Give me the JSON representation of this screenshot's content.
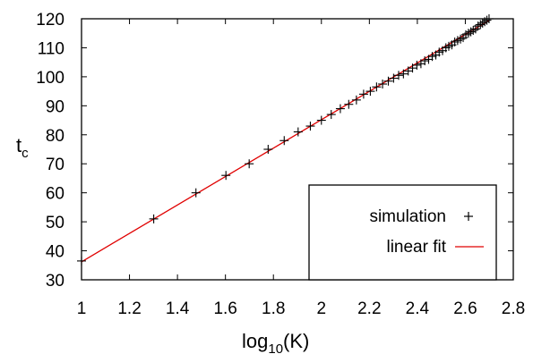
{
  "chart_data": {
    "type": "scatter",
    "xlabel": "log",
    "xlabel_sub": "10",
    "xlabel_tail": "(K)",
    "ylabel": "t",
    "ylabel_sub": "c",
    "xlim": [
      1.0,
      2.8
    ],
    "ylim": [
      30,
      120
    ],
    "xticks": [
      "1",
      "1.2",
      "1.4",
      "1.6",
      "1.8",
      "2",
      "2.2",
      "2.4",
      "2.6",
      "2.8"
    ],
    "yticks": [
      "30",
      "40",
      "50",
      "60",
      "70",
      "80",
      "90",
      "100",
      "110",
      "120"
    ],
    "legend_position": "bottom-right",
    "series": [
      {
        "name": "simulation",
        "marker": "+",
        "color": "#000000",
        "x": [
          1.0,
          1.301,
          1.477,
          1.602,
          1.699,
          1.778,
          1.845,
          1.903,
          1.954,
          2.0,
          2.041,
          2.079,
          2.114,
          2.146,
          2.176,
          2.204,
          2.23,
          2.255,
          2.279,
          2.301,
          2.322,
          2.342,
          2.362,
          2.38,
          2.398,
          2.415,
          2.431,
          2.447,
          2.462,
          2.477,
          2.491,
          2.505,
          2.519,
          2.531,
          2.544,
          2.556,
          2.568,
          2.58,
          2.591,
          2.602,
          2.613,
          2.623,
          2.633,
          2.643,
          2.653,
          2.663,
          2.672,
          2.681,
          2.69,
          2.699
        ],
        "y": [
          36.5,
          51,
          60,
          66,
          70,
          75,
          78,
          81,
          83,
          85,
          87,
          89,
          90.5,
          92,
          94,
          95,
          96.5,
          97.5,
          98.5,
          99.5,
          100.5,
          101,
          102,
          103,
          104,
          104.5,
          105.5,
          106,
          107,
          107.5,
          108.5,
          109,
          110,
          110.5,
          111,
          112,
          112.5,
          113,
          113.5,
          114.5,
          115,
          115.5,
          116,
          116.5,
          117.5,
          118,
          118.5,
          119,
          119.5,
          120
        ]
      },
      {
        "name": "linear fit",
        "color": "#e00000",
        "x": [
          1.0,
          2.7
        ],
        "y": [
          36.2,
          119.5
        ]
      }
    ]
  }
}
